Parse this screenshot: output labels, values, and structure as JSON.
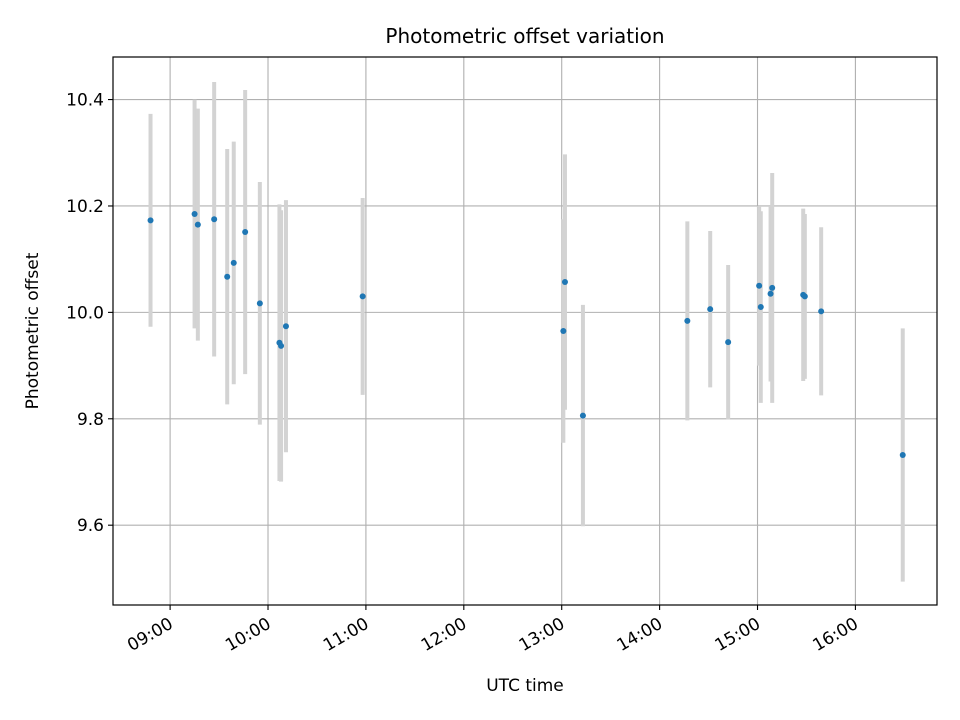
{
  "chart_data": {
    "type": "scatter",
    "title": "Photometric offset variation",
    "xlabel": "UTC time",
    "ylabel": "Photometric offset",
    "x_tick_labels": [
      "09:00",
      "10:00",
      "11:00",
      "12:00",
      "13:00",
      "14:00",
      "15:00",
      "16:00"
    ],
    "y_ticks": [
      9.6,
      9.8,
      10.0,
      10.2,
      10.4
    ],
    "y_tick_labels": [
      "9.6",
      "9.8",
      "10.0",
      "10.2",
      "10.4"
    ],
    "xlim": [
      "08:25",
      "16:50"
    ],
    "ylim": [
      9.45,
      10.48
    ],
    "grid": true,
    "errorbar_color": "#d3d3d3",
    "point_color": "#1f77b4",
    "points": [
      {
        "x": "08:48",
        "y": 10.173,
        "err": 0.2
      },
      {
        "x": "09:15",
        "y": 10.185,
        "err": 0.215
      },
      {
        "x": "09:17",
        "y": 10.165,
        "err": 0.218
      },
      {
        "x": "09:27",
        "y": 10.175,
        "err": 0.258
      },
      {
        "x": "09:35",
        "y": 10.067,
        "err": 0.24
      },
      {
        "x": "09:39",
        "y": 10.093,
        "err": 0.228
      },
      {
        "x": "09:46",
        "y": 10.151,
        "err": 0.267
      },
      {
        "x": "09:55",
        "y": 10.017,
        "err": 0.228
      },
      {
        "x": "10:07",
        "y": 9.943,
        "err": 0.26
      },
      {
        "x": "10:08",
        "y": 9.937,
        "err": 0.255
      },
      {
        "x": "10:11",
        "y": 9.974,
        "err": 0.237
      },
      {
        "x": "10:58",
        "y": 10.03,
        "err": 0.185
      },
      {
        "x": "13:01",
        "y": 9.965,
        "err": 0.21
      },
      {
        "x": "13:02",
        "y": 10.057,
        "err": 0.24
      },
      {
        "x": "13:13",
        "y": 9.806,
        "err": 0.208
      },
      {
        "x": "14:17",
        "y": 9.984,
        "err": 0.187
      },
      {
        "x": "14:31",
        "y": 10.006,
        "err": 0.147
      },
      {
        "x": "14:42",
        "y": 9.944,
        "err": 0.145
      },
      {
        "x": "15:01",
        "y": 10.05,
        "err": 0.15
      },
      {
        "x": "15:02",
        "y": 10.01,
        "err": 0.18
      },
      {
        "x": "15:08",
        "y": 10.035,
        "err": 0.165
      },
      {
        "x": "15:09",
        "y": 10.046,
        "err": 0.216
      },
      {
        "x": "15:28",
        "y": 10.033,
        "err": 0.162
      },
      {
        "x": "15:29",
        "y": 10.03,
        "err": 0.155
      },
      {
        "x": "15:39",
        "y": 10.002,
        "err": 0.158
      },
      {
        "x": "16:29",
        "y": 9.732,
        "err": 0.238
      }
    ]
  }
}
